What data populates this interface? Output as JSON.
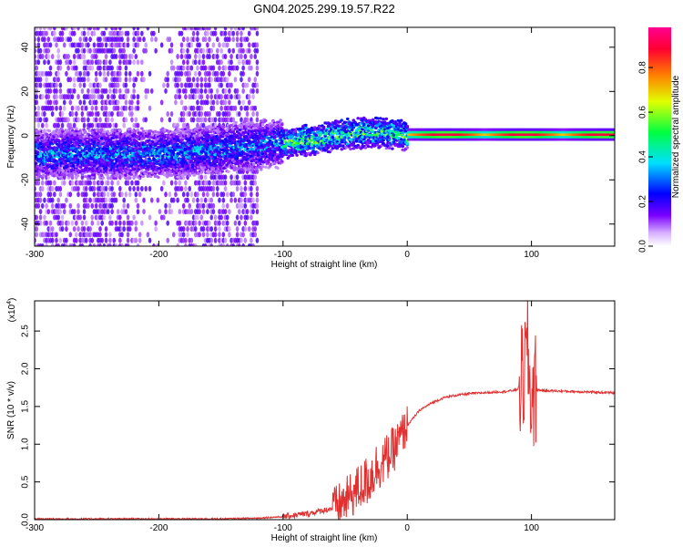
{
  "figure": {
    "title": "GN04.2025.299.19.57.R22"
  },
  "chart_data": [
    {
      "type": "heatmap",
      "name": "spectrogram",
      "xlabel": "Height of straight line (km)",
      "ylabel": "Frequency (Hz)",
      "xlim": [
        -300,
        167
      ],
      "ylim": [
        -50,
        49
      ],
      "x_ticks": [
        "-300",
        "-200",
        "-100",
        "0",
        "100"
      ],
      "y_ticks": [
        "-40",
        "-20",
        "0",
        "20",
        "40"
      ],
      "colorbar": {
        "label": "Normalized spectral amplitude",
        "range": [
          0.0,
          0.98
        ],
        "ticks": [
          "0.0",
          "0.2",
          "0.4",
          "0.6",
          "0.8"
        ],
        "colormap": [
          "#ffffff",
          "#7a00ff",
          "#0000ff",
          "#00e0ff",
          "#00ff40",
          "#e0ff00",
          "#ff8000",
          "#ff0030",
          "#ff0090"
        ]
      },
      "features": {
        "noise_region_x": [
          -300,
          -120
        ],
        "main_ridge": [
          [
            -300,
            -8
          ],
          [
            -200,
            -8
          ],
          [
            -150,
            -6
          ],
          [
            -100,
            -3
          ],
          [
            -70,
            -1
          ],
          [
            -50,
            1
          ],
          [
            -30,
            2
          ],
          [
            0,
            0.5
          ],
          [
            100,
            0.5
          ],
          [
            167,
            0.5
          ]
        ],
        "bright_band_x": [
          0,
          167
        ],
        "bright_band_frequency": 0.5
      },
      "grid": false
    },
    {
      "type": "line",
      "name": "snr",
      "xlabel": "Height of straight line (km)",
      "ylabel": "SNR (10 * v/v)",
      "exponent_label": "(x10",
      "exponent_power": "4",
      "exponent_close": ")",
      "xlim": [
        -300,
        167
      ],
      "ylim": [
        0,
        2.9
      ],
      "x_ticks": [
        "-300",
        "-200",
        "-100",
        "0",
        "100"
      ],
      "y_ticks": [
        "0.0",
        "0.5",
        "1.0",
        "1.5",
        "2.0",
        "2.5"
      ],
      "color": "#e03030",
      "series": [
        {
          "x": [
            -300,
            -250,
            -200,
            -150,
            -120,
            -100,
            -80,
            -60,
            -50,
            -40,
            -30,
            -25,
            -20,
            -15,
            -10,
            -5,
            0,
            10,
            20,
            30,
            40,
            50,
            60,
            70,
            80,
            88,
            92,
            95,
            97,
            99,
            101,
            105,
            110,
            130,
            150,
            167
          ],
          "y": [
            0.01,
            0.01,
            0.01,
            0.01,
            0.02,
            0.04,
            0.08,
            0.15,
            0.25,
            0.4,
            0.55,
            0.7,
            0.75,
            0.85,
            0.95,
            1.1,
            1.25,
            1.45,
            1.55,
            1.62,
            1.65,
            1.67,
            1.68,
            1.69,
            1.7,
            1.72,
            1.8,
            2.0,
            2.3,
            1.6,
            1.7,
            1.72,
            1.71,
            1.7,
            1.69,
            1.68
          ]
        }
      ],
      "grid": false
    }
  ]
}
